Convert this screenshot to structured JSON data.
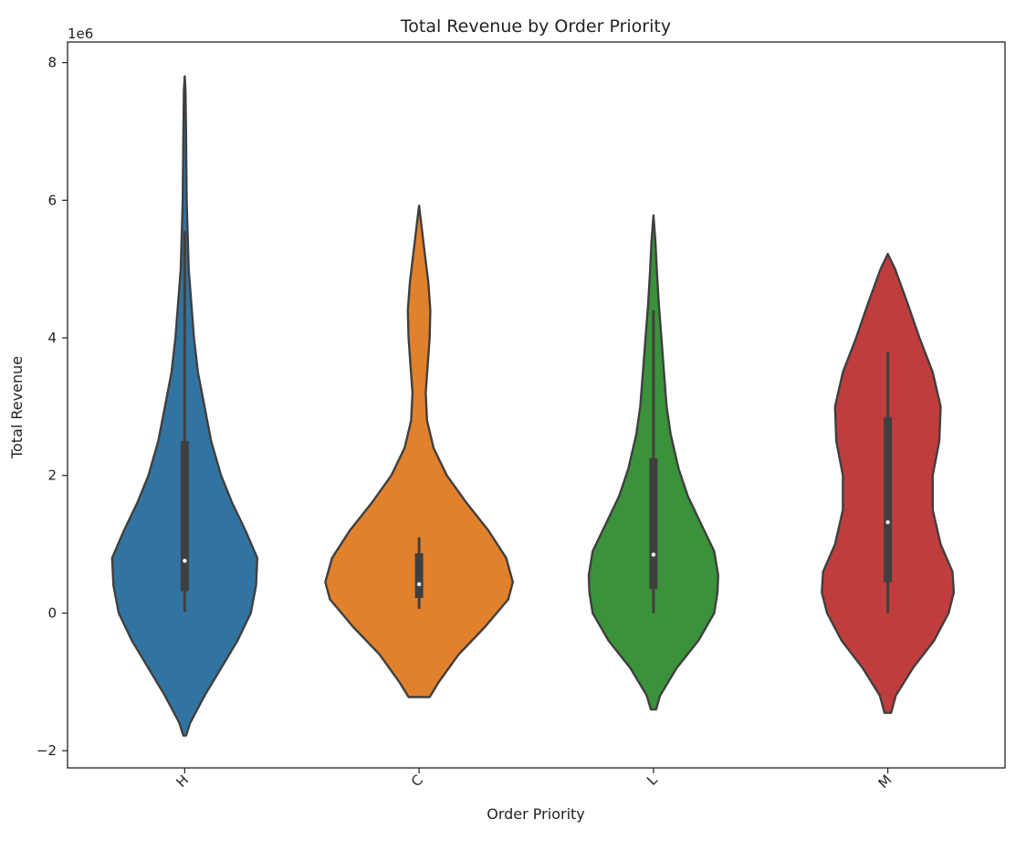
{
  "chart_data": {
    "type": "violin",
    "title": "Total Revenue by Order Priority",
    "xlabel": "Order Priority",
    "ylabel": "Total Revenue",
    "y_scale_label": "1e6",
    "ylim": [
      -2.25,
      8.3
    ],
    "yticks": [
      -2,
      0,
      2,
      4,
      6,
      8
    ],
    "grid": false,
    "legend": "none",
    "categories": [
      "H",
      "C",
      "L",
      "M"
    ],
    "colors": [
      "#3274a1",
      "#e1812c",
      "#3a923a",
      "#c03d3e"
    ],
    "series": [
      {
        "category": "H",
        "whisker": [
          0.02,
          5.55
        ],
        "q1": 0.32,
        "median": 0.76,
        "q3": 2.5,
        "kde_range": [
          -1.78,
          7.8
        ],
        "density": [
          [
            -1.78,
            0.02
          ],
          [
            -1.6,
            0.08
          ],
          [
            -1.2,
            0.3
          ],
          [
            -0.8,
            0.55
          ],
          [
            -0.4,
            0.8
          ],
          [
            0.0,
            1.0
          ],
          [
            0.4,
            1.08
          ],
          [
            0.8,
            1.1
          ],
          [
            1.2,
            0.92
          ],
          [
            1.6,
            0.72
          ],
          [
            2.0,
            0.55
          ],
          [
            2.5,
            0.4
          ],
          [
            3.0,
            0.3
          ],
          [
            3.5,
            0.2
          ],
          [
            4.0,
            0.14
          ],
          [
            5.0,
            0.06
          ],
          [
            6.0,
            0.03
          ],
          [
            7.0,
            0.02
          ],
          [
            7.6,
            0.012
          ],
          [
            7.8,
            0.0
          ]
        ]
      },
      {
        "category": "C",
        "whisker": [
          0.06,
          1.1
        ],
        "q1": 0.22,
        "median": 0.42,
        "q3": 0.87,
        "kde_range": [
          -1.22,
          5.92
        ],
        "density": [
          [
            -1.22,
            0.16
          ],
          [
            -1.0,
            0.3
          ],
          [
            -0.6,
            0.6
          ],
          [
            -0.2,
            1.0
          ],
          [
            0.2,
            1.35
          ],
          [
            0.45,
            1.42
          ],
          [
            0.8,
            1.32
          ],
          [
            1.2,
            1.05
          ],
          [
            1.6,
            0.72
          ],
          [
            2.0,
            0.42
          ],
          [
            2.4,
            0.22
          ],
          [
            2.8,
            0.12
          ],
          [
            3.2,
            0.1
          ],
          [
            3.6,
            0.13
          ],
          [
            4.0,
            0.16
          ],
          [
            4.4,
            0.17
          ],
          [
            4.8,
            0.14
          ],
          [
            5.2,
            0.09
          ],
          [
            5.6,
            0.04
          ],
          [
            5.92,
            0.0
          ]
        ]
      },
      {
        "category": "L",
        "whisker": [
          0.0,
          4.4
        ],
        "q1": 0.35,
        "median": 0.85,
        "q3": 2.25,
        "kde_range": [
          -1.4,
          5.78
        ],
        "density": [
          [
            -1.4,
            0.04
          ],
          [
            -1.2,
            0.1
          ],
          [
            -0.8,
            0.35
          ],
          [
            -0.4,
            0.68
          ],
          [
            0.0,
            0.92
          ],
          [
            0.3,
            0.97
          ],
          [
            0.55,
            0.98
          ],
          [
            0.9,
            0.92
          ],
          [
            1.3,
            0.72
          ],
          [
            1.7,
            0.52
          ],
          [
            2.1,
            0.38
          ],
          [
            2.6,
            0.26
          ],
          [
            3.0,
            0.2
          ],
          [
            3.5,
            0.16
          ],
          [
            4.0,
            0.12
          ],
          [
            4.5,
            0.08
          ],
          [
            5.0,
            0.05
          ],
          [
            5.4,
            0.03
          ],
          [
            5.78,
            0.0
          ]
        ]
      },
      {
        "category": "M",
        "whisker": [
          0.0,
          3.8
        ],
        "q1": 0.45,
        "median": 1.32,
        "q3": 2.85,
        "kde_range": [
          -1.45,
          5.22
        ],
        "density": [
          [
            -1.45,
            0.05
          ],
          [
            -1.2,
            0.12
          ],
          [
            -0.8,
            0.38
          ],
          [
            -0.4,
            0.7
          ],
          [
            0.0,
            0.92
          ],
          [
            0.3,
            1.0
          ],
          [
            0.6,
            0.98
          ],
          [
            1.0,
            0.8
          ],
          [
            1.5,
            0.68
          ],
          [
            2.0,
            0.68
          ],
          [
            2.5,
            0.78
          ],
          [
            3.0,
            0.8
          ],
          [
            3.5,
            0.68
          ],
          [
            4.0,
            0.48
          ],
          [
            4.5,
            0.3
          ],
          [
            5.0,
            0.11
          ],
          [
            5.22,
            0.0
          ]
        ]
      }
    ]
  }
}
